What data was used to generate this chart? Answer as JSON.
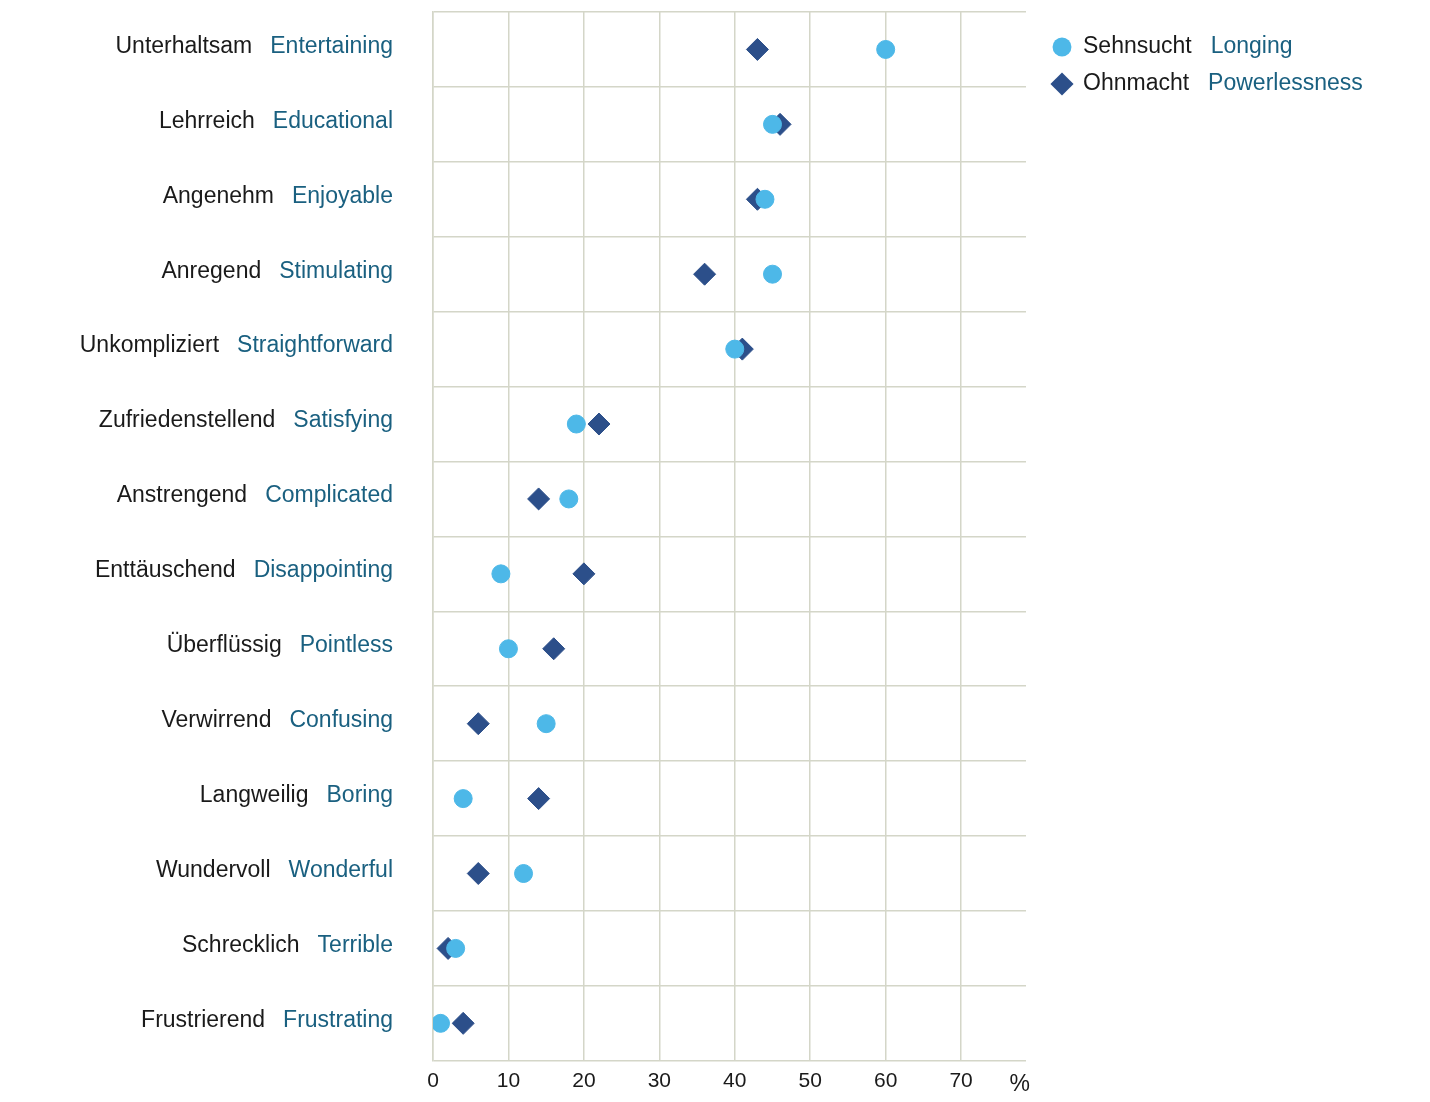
{
  "chart_data": {
    "type": "scatter",
    "orientation": "horizontal",
    "categories": [
      "Unterhaltsam Entertaining",
      "Lehrreich Educational",
      "Angenehm Enjoyable",
      "Anregend Stimulating",
      "Unkompliziert Straightforward",
      "Zufriedenstellend Satisfying",
      "Anstrengend Complicated",
      "Enttäuschend Disappointing",
      "Überflüssig Pointless",
      "Verwirrend Confusing",
      "Langweilig Boring",
      "Wundervoll Wonderful",
      "Schrecklich Terrible",
      "Frustrierend Frustrating"
    ],
    "series": [
      {
        "name": "Sehnsucht Longing",
        "color": "#4db8e8",
        "marker": "circle",
        "values": [
          60,
          45,
          44,
          45,
          40,
          19,
          18,
          9,
          10,
          15,
          4,
          12,
          3,
          1
        ]
      },
      {
        "name": "Ohnmacht Powerlessness",
        "color": "#2c4f8a",
        "marker": "diamond",
        "values": [
          43,
          46,
          43,
          36,
          41,
          22,
          14,
          20,
          16,
          6,
          14,
          6,
          2,
          4
        ]
      }
    ],
    "xlabel": "%",
    "xlim": [
      0,
      78.6
    ],
    "xticks": [
      0,
      10,
      20,
      30,
      40,
      50,
      60,
      70
    ],
    "grid": true,
    "legend": "top right"
  }
}
